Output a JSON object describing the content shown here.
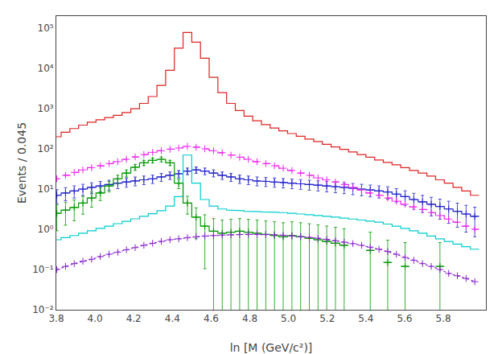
{
  "chart_data": {
    "type": "step",
    "xlabel": "ln [M (GeV/c²)]",
    "ylabel": "Events / 0.045",
    "log": "y",
    "grid": false,
    "xlim": [
      3.8,
      6.02
    ],
    "ylim": [
      0.01,
      200000
    ],
    "xticks": [
      3.8,
      {
        "value": 4,
        "label": "4.0"
      },
      4.2,
      4.4,
      4.6,
      4.8,
      {
        "value": 5,
        "label": "5.0"
      },
      5.2,
      5.4,
      5.6,
      5.8
    ],
    "yticks": [
      {
        "value": 0.01,
        "label": "10⁻²"
      },
      {
        "value": 0.1,
        "label": "10⁻¹"
      },
      {
        "value": 1,
        "label": "10⁰"
      },
      {
        "value": 10,
        "label": "10¹"
      },
      {
        "value": 100,
        "label": "10²"
      },
      {
        "value": 1000,
        "label": "10³"
      },
      {
        "value": 10000,
        "label": "10⁴"
      },
      {
        "value": 100000,
        "label": "10⁵"
      }
    ],
    "x": [
      3.8025,
      3.8475,
      3.8925,
      3.9375,
      3.9825,
      4.0275,
      4.0725,
      4.1175,
      4.1625,
      4.2075,
      4.2525,
      4.2975,
      4.3425,
      4.3875,
      4.4325,
      4.4775,
      4.5225,
      4.5675,
      4.6125,
      4.6575,
      4.7025,
      4.7475,
      4.7925,
      4.8375,
      4.8825,
      4.9275,
      4.9725,
      5.0175,
      5.0625,
      5.1075,
      5.1525,
      5.1975,
      5.2425,
      5.2875,
      5.3325,
      5.3775,
      5.4225,
      5.4675,
      5.5125,
      5.5575,
      5.6025,
      5.6475,
      5.6925,
      5.7375,
      5.7825,
      5.8275,
      5.8725,
      5.9175,
      5.9625
    ],
    "bins": [
      3.78,
      3.825,
      3.87,
      3.915,
      3.96,
      4.005,
      4.05,
      4.095,
      4.14,
      4.185,
      4.23,
      4.275,
      4.32,
      4.365,
      4.41,
      4.455,
      4.5,
      4.545,
      4.59,
      4.635,
      4.68,
      4.725,
      4.77,
      4.815,
      4.86,
      4.905,
      4.95,
      4.995,
      5.04,
      5.085,
      5.13,
      5.175,
      5.22,
      5.265,
      5.31,
      5.355,
      5.4,
      5.445,
      5.49,
      5.535,
      5.58,
      5.625,
      5.67,
      5.715,
      5.76,
      5.805,
      5.85,
      5.895,
      5.94,
      5.985
    ],
    "series": [
      {
        "type": "step",
        "color": "#dd2222",
        "line_style": "solid",
        "values": [
          200,
          260,
          320,
          390,
          460,
          530,
          600,
          680,
          800,
          1000,
          1350,
          2000,
          3800,
          9000,
          32000,
          78000,
          45000,
          18000,
          6000,
          2500,
          1350,
          900,
          650,
          500,
          400,
          330,
          280,
          240,
          205,
          175,
          152,
          130,
          112,
          97,
          84,
          72,
          62,
          53,
          46,
          40,
          34,
          29,
          25,
          21,
          17,
          14,
          11,
          9,
          7
        ]
      },
      {
        "type": "step",
        "color": "#2222cc",
        "line_style": "solid",
        "marker": "+",
        "values": [
          7,
          8,
          9,
          10,
          11,
          12,
          13,
          14,
          15,
          16,
          17,
          18,
          20,
          22,
          24,
          28,
          30,
          28,
          25,
          22,
          20,
          18,
          17,
          16,
          15.5,
          15,
          14.5,
          14,
          13.5,
          13,
          12.5,
          12,
          11.5,
          11,
          10.5,
          10,
          9.5,
          9,
          8.5,
          7.5,
          6.5,
          5.5,
          4.8,
          4.2,
          3.7,
          3.2,
          2.8,
          2.4,
          2.1
        ],
        "errors": [
          2.6458,
          2.8284,
          3,
          3.1623,
          3.3166,
          3.4641,
          3.6056,
          3.7417,
          3.873,
          4,
          4.1231,
          4.2426,
          4.4721,
          4.6904,
          4.899,
          5.2915,
          5.4772,
          5.2915,
          5,
          4.6904,
          4.4721,
          4.2426,
          4.1231,
          4,
          3.937,
          3.873,
          3.8079,
          3.7417,
          3.6742,
          3.6056,
          3.5355,
          3.4641,
          3.3912,
          3.3166,
          3.2404,
          3.1623,
          3.0822,
          3,
          2.9155,
          2.7386,
          2.5495,
          2.3452,
          2.1909,
          2.0494,
          1.9235,
          1.7889,
          1.6733,
          1.5492,
          1.4491
        ]
      },
      {
        "type": "step",
        "color": "#ee22ee",
        "line_style": "dashed",
        "marker": "+",
        "values": [
          18,
          22,
          26,
          30,
          34,
          38,
          43,
          48,
          55,
          63,
          72,
          82,
          90,
          98,
          105,
          115,
          110,
          100,
          90,
          80,
          70,
          62,
          55,
          48,
          43,
          38,
          33,
          29,
          25,
          22,
          19,
          17,
          15,
          13,
          11,
          9.5,
          8.0,
          7.0,
          6.0,
          5.0,
          4.2,
          3.6,
          3.1,
          2.6,
          2.2,
          1.8,
          1.5,
          1.2,
          1.0
        ]
      },
      {
        "type": "step",
        "color": "#00cccc",
        "line_style": "solid",
        "values": [
          0.55,
          0.62,
          0.7,
          0.8,
          0.92,
          1.05,
          1.2,
          1.38,
          1.58,
          1.82,
          2.1,
          2.45,
          2.9,
          3.8,
          6.5,
          70,
          14,
          5.5,
          3.8,
          3.2,
          3.0,
          2.9,
          2.8,
          2.75,
          2.7,
          2.65,
          2.6,
          2.5,
          2.4,
          2.3,
          2.2,
          2.1,
          2.0,
          1.9,
          1.8,
          1.7,
          1.6,
          1.5,
          1.35,
          1.2,
          1.05,
          0.92,
          0.8,
          0.68,
          0.58,
          0.5,
          0.43,
          0.37,
          0.32
        ]
      },
      {
        "type": "step",
        "color": "#009900",
        "line_style": "solid",
        "marker": "+",
        "values": [
          2.5,
          3.0,
          3.5,
          4.5,
          6.0,
          8.0,
          12,
          18,
          25,
          35,
          45,
          52,
          55,
          45,
          14,
          4.5,
          2.0,
          1.2,
          0.9,
          0.8,
          0.85,
          0.9,
          0.85,
          0.8,
          0.75,
          0.7,
          0.65,
          0.7,
          0.65,
          0.6,
          0.55,
          0.5,
          0.45,
          0.4,
          null,
          null,
          0.3,
          null,
          0.15,
          null,
          0.12,
          null,
          null,
          null,
          0.12,
          null,
          null,
          null,
          null
        ],
        "errors": [
          1.5811,
          1.7321,
          1.8708,
          2.1213,
          2.4495,
          2.8284,
          3.4641,
          4.2426,
          5,
          5.9161,
          6.7082,
          7.2111,
          7.4162,
          6.7082,
          3.7417,
          2.1213,
          1.4142,
          1.0954,
          0.9487,
          0.8944,
          0.922,
          0.9487,
          0.922,
          0.8944,
          0.866,
          0.8367,
          0.8062,
          0.8367,
          0.8062,
          0.7746,
          0.7416,
          0.7071,
          0.6708,
          0.6325,
          null,
          null,
          0.5477,
          null,
          0.3873,
          null,
          0.3464,
          null,
          null,
          null,
          0.3464,
          null,
          null,
          null,
          null
        ]
      },
      {
        "type": "line",
        "color": "#8822cc",
        "line_style": "dotted",
        "marker": "+",
        "values": [
          0.1,
          0.12,
          0.14,
          0.16,
          0.18,
          0.21,
          0.24,
          0.27,
          0.31,
          0.35,
          0.4,
          0.45,
          0.5,
          0.55,
          0.58,
          0.62,
          0.65,
          0.68,
          0.7,
          0.72,
          0.73,
          0.74,
          0.75,
          0.75,
          0.74,
          0.73,
          0.71,
          0.69,
          0.66,
          0.63,
          0.6,
          0.56,
          0.52,
          0.48,
          0.44,
          0.4,
          0.36,
          0.32,
          0.28,
          0.24,
          0.2,
          0.17,
          0.14,
          0.12,
          0.1,
          0.08,
          0.07,
          0.06,
          0.05
        ]
      }
    ]
  }
}
